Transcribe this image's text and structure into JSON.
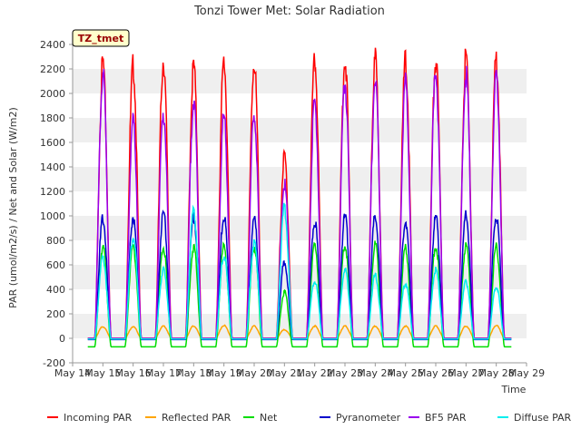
{
  "chart_data": {
    "type": "line",
    "title": "Tonzi Tower Met: Solar Radiation",
    "xlabel": "Time",
    "ylabel": "PAR (umol/m2/s) / Net and Solar (W/m2)",
    "ylim": [
      -200,
      2400
    ],
    "yticks": [
      -200,
      0,
      200,
      400,
      600,
      800,
      1000,
      1200,
      1400,
      1600,
      1800,
      2000,
      2200,
      2400
    ],
    "xlim": [
      14,
      29
    ],
    "xticks": [
      14,
      15,
      16,
      17,
      18,
      19,
      20,
      21,
      22,
      23,
      24,
      25,
      26,
      27,
      28,
      29
    ],
    "xtick_labels": [
      "May 14",
      "May 15",
      "May 16",
      "May 17",
      "May 18",
      "May 19",
      "May 20",
      "May 21",
      "May 22",
      "May 23",
      "May 24",
      "May 25",
      "May 26",
      "May 27",
      "May 28",
      "May 29"
    ],
    "grid": "horizontal bands",
    "legend_position": "bottom",
    "site_label": "TZ_tmet",
    "days": [
      15,
      16,
      17,
      18,
      19,
      20,
      21,
      22,
      23,
      24,
      25,
      26,
      27,
      28
    ],
    "series": [
      {
        "name": "Incoming PAR",
        "color": "#ff0000",
        "peaks": [
          2240,
          2220,
          2270,
          2220,
          2260,
          2260,
          1480,
          2260,
          2280,
          2270,
          2260,
          2280,
          2290,
          2280
        ],
        "night": 0
      },
      {
        "name": "Reflected PAR",
        "color": "#ffa500",
        "peaks": [
          95,
          95,
          100,
          100,
          105,
          100,
          70,
          100,
          100,
          100,
          100,
          100,
          100,
          105
        ],
        "night": 0
      },
      {
        "name": "Net",
        "color": "#00dd00",
        "peaks": [
          750,
          750,
          740,
          740,
          750,
          750,
          380,
          760,
          760,
          760,
          740,
          750,
          760,
          745
        ],
        "night": -70
      },
      {
        "name": "Pyranometer",
        "color": "#0000cc",
        "peaks": [
          980,
          990,
          1020,
          990,
          1000,
          970,
          620,
          960,
          990,
          1000,
          960,
          990,
          1000,
          1010
        ],
        "night": -10
      },
      {
        "name": "BF5 PAR",
        "color": "#9900ee",
        "peaks": [
          2160,
          1780,
          1850,
          1930,
          1810,
          1850,
          1260,
          1920,
          2090,
          2110,
          2080,
          2160,
          2150,
          2150
        ],
        "night": 0
      },
      {
        "name": "Diffuse PAR",
        "color": "#00eeee",
        "peaks": [
          650,
          830,
          560,
          1040,
          680,
          780,
          1060,
          470,
          560,
          510,
          450,
          560,
          460,
          420
        ],
        "night": -5
      }
    ]
  }
}
